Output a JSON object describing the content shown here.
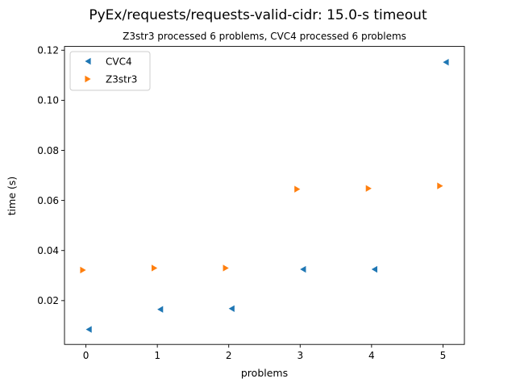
{
  "chart_data": {
    "type": "scatter",
    "title": "PyEx/requests/requests-valid-cidr: 15.0-s timeout",
    "subtitle": "Z3str3 processed 6 problems, CVC4 processed 6 problems",
    "xlabel": "problems",
    "ylabel": "time (s)",
    "xlim": [
      -0.3,
      5.3
    ],
    "ylim": [
      0.0025,
      0.1215
    ],
    "xticks": [
      0,
      1,
      2,
      3,
      4,
      5
    ],
    "yticks": [
      0.02,
      0.04,
      0.06,
      0.08,
      0.1,
      0.12
    ],
    "ytick_labels": [
      "0.02",
      "0.04",
      "0.06",
      "0.08",
      "0.10",
      "0.12"
    ],
    "legend_position": "top-left",
    "grid": false,
    "series": [
      {
        "name": "CVC4",
        "marker": "triangle-left",
        "color": "#1f77b4",
        "x": [
          0.04,
          1.04,
          2.04,
          3.04,
          4.04,
          5.04
        ],
        "y": [
          0.0085,
          0.0165,
          0.0168,
          0.0325,
          0.0325,
          0.1152
        ]
      },
      {
        "name": "Z3str3",
        "marker": "triangle-right",
        "color": "#ff7f0e",
        "x": [
          -0.04,
          0.96,
          1.96,
          2.96,
          3.96,
          4.96
        ],
        "y": [
          0.0322,
          0.033,
          0.033,
          0.0645,
          0.0648,
          0.0658
        ]
      }
    ]
  }
}
